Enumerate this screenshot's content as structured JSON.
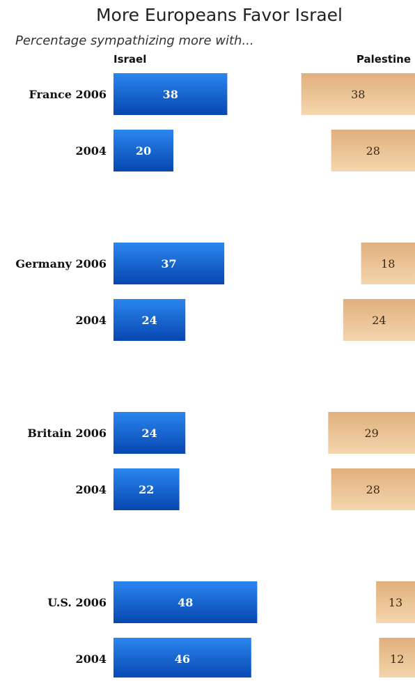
{
  "title": "More Europeans Favor Israel",
  "subtitle": "Percentage sympathizing more with...",
  "colors": {
    "israel_top": "#2a86ee",
    "israel_bottom": "#0846b0",
    "palestine_top": "#e0b07c",
    "palestine_bottom": "#f4d6ae"
  },
  "chart_data": {
    "type": "bar",
    "orientation": "horizontal",
    "categories": [
      "France 2006",
      "2004",
      "Germany 2006",
      "2004",
      "Britain 2006",
      "2004",
      "U.S. 2006",
      "2004"
    ],
    "series": [
      {
        "name": "Israel",
        "values": [
          38,
          20,
          37,
          24,
          24,
          22,
          48,
          46
        ]
      },
      {
        "name": "Palestine",
        "values": [
          38,
          28,
          18,
          24,
          29,
          28,
          13,
          12
        ]
      }
    ],
    "title": "More Europeans Favor Israel",
    "subtitle": "Percentage sympathizing more with...",
    "xlabel": "",
    "ylabel": "",
    "grid": false,
    "legend": "top"
  }
}
